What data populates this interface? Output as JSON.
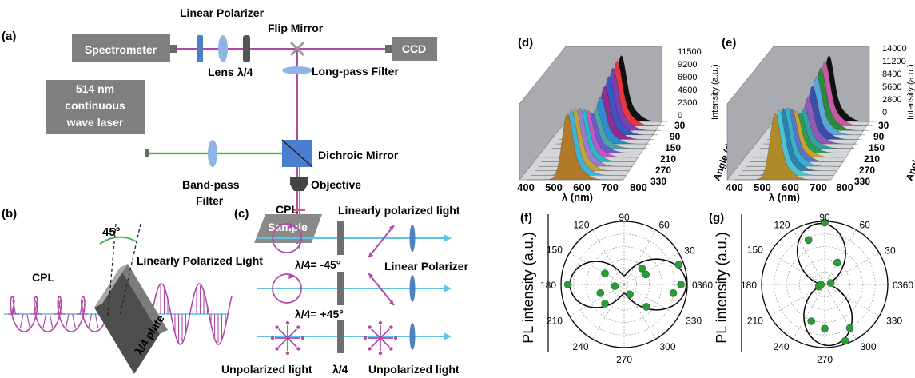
{
  "panel_a": {
    "label": "(a)",
    "spectrometer": "Spectrometer",
    "linear_polarizer": "Linear Polarizer",
    "lens": "Lens",
    "quarter_wave": "λ/4",
    "flip_mirror": "Flip Mirror",
    "ccd": "CCD",
    "long_pass_filter": "Long-pass Filter",
    "laser_line1": "514 nm",
    "laser_line2": "continuous",
    "laser_line3": "wave laser",
    "band_pass_line1": "Band-pass",
    "band_pass_line2": "Filter",
    "dichroic_mirror": "Dichroic Mirror",
    "objective": "Objective",
    "sample": "Sample"
  },
  "panel_b": {
    "label": "(b)",
    "angle": "45°",
    "cpl": "CPL",
    "linearly_polarized_light": "Linearly Polarized Light",
    "plate": "λ/4 plate"
  },
  "panel_c": {
    "label": "(c)",
    "cpl": "CPL",
    "linearly_polarized_light": "Linearly polarized light",
    "minus45": "λ/4= -45°",
    "plus45": "λ/4= +45°",
    "linear_polarizer": "Linear Polarizer",
    "unpolarized_left": "Unpolarized light",
    "quarter_wave": "λ/4",
    "unpolarized_right": "Unpolarized light"
  },
  "panel_d": {
    "label": "(d)",
    "xlabel": "λ (nm)",
    "x_ticks": [
      "400",
      "500",
      "600",
      "700",
      "800"
    ],
    "z_label": "Intensity (a.u.)",
    "z_ticks": [
      "11500",
      "9200",
      "6900",
      "4600",
      "2300",
      "0"
    ],
    "angle_label": "Angle (degree)",
    "angle_ticks": [
      "30",
      "90",
      "150",
      "210",
      "270",
      "330"
    ]
  },
  "panel_e": {
    "label": "(e)",
    "xlabel": "λ (nm)",
    "x_ticks": [
      "400",
      "500",
      "600",
      "700",
      "800"
    ],
    "z_label": "Intensity (a.u.)",
    "z_ticks": [
      "14000",
      "11200",
      "8400",
      "5600",
      "2800",
      "0"
    ],
    "angle_label": "Angle (degree)",
    "angle_ticks": [
      "30",
      "90",
      "150",
      "210",
      "270",
      "330"
    ]
  },
  "panel_f": {
    "label": "(f)",
    "ylabel": "PL intensity (a.u.)",
    "angle_ticks": [
      "0",
      "30",
      "60",
      "90",
      "120",
      "150",
      "180",
      "210",
      "240",
      "270",
      "300",
      "330",
      "360"
    ]
  },
  "panel_g": {
    "label": "(g)",
    "ylabel": "PL intensity (a.u.)",
    "angle_ticks": [
      "0",
      "30",
      "60",
      "90",
      "120",
      "150",
      "180",
      "210",
      "240",
      "270",
      "300",
      "330",
      "360"
    ]
  },
  "colors": {
    "beam": "#b04aa8",
    "laser": "#57b947",
    "cyan": "#5ec3e0",
    "box": "#808080",
    "marker": "#2e9a3a"
  }
}
